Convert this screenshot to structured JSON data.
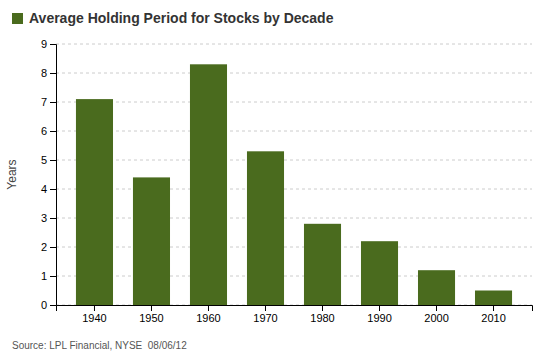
{
  "chart_data": {
    "type": "bar",
    "title": "Average Holding Period for Stocks by Decade",
    "categories": [
      "1940",
      "1950",
      "1960",
      "1970",
      "1980",
      "1990",
      "2000",
      "2010"
    ],
    "values": [
      7.1,
      4.4,
      8.3,
      5.3,
      2.8,
      2.2,
      1.2,
      0.5
    ],
    "color": "#4a6b1e",
    "ylabel": "Years",
    "ylim": [
      0,
      9
    ],
    "yticks": [
      0,
      1,
      2,
      3,
      4,
      5,
      6,
      7,
      8,
      9
    ],
    "grid": true,
    "annotations": [
      "Source: LPL Financial, NYSE  08/06/12"
    ]
  }
}
